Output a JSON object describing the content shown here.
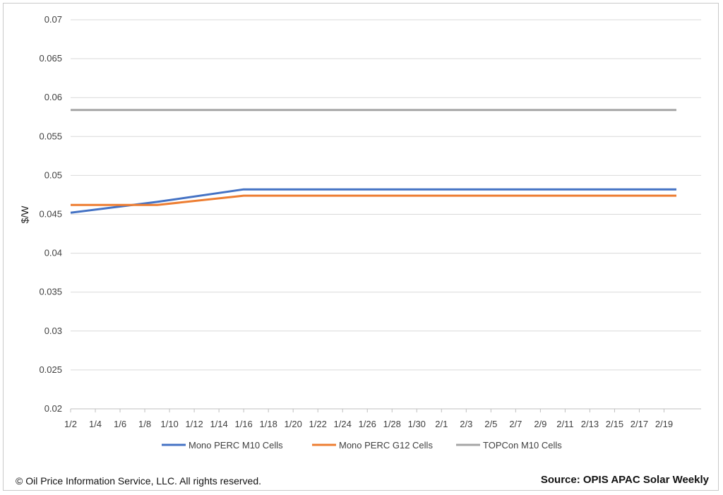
{
  "chart_data": {
    "type": "line",
    "ylabel": "$/W",
    "ylim": [
      0.02,
      0.07
    ],
    "yticks": [
      "0.02",
      "0.025",
      "0.03",
      "0.035",
      "0.04",
      "0.045",
      "0.05",
      "0.055",
      "0.06",
      "0.065",
      "0.07"
    ],
    "x_tick_labels": [
      "1/2",
      "1/4",
      "1/6",
      "1/8",
      "1/10",
      "1/12",
      "1/14",
      "1/16",
      "1/18",
      "1/20",
      "1/22",
      "1/24",
      "1/26",
      "1/28",
      "1/30",
      "2/1",
      "2/3",
      "2/5",
      "2/7",
      "2/9",
      "2/11",
      "2/13",
      "2/15",
      "2/17",
      "2/19"
    ],
    "x": [
      "1/2",
      "1/9",
      "1/16",
      "1/23",
      "1/30",
      "2/6",
      "2/13",
      "2/20"
    ],
    "grid": "horizontal",
    "legend_position": "bottom",
    "series": [
      {
        "name": "Mono PERC M10 Cells",
        "color": "#4472c4",
        "values": [
          0.0452,
          0.0466,
          0.0482,
          0.0482,
          0.0482,
          0.0482,
          0.0482,
          0.0482
        ]
      },
      {
        "name": "Mono PERC G12 Cells",
        "color": "#ed7d31",
        "values": [
          0.0462,
          0.0462,
          0.0474,
          0.0474,
          0.0474,
          0.0474,
          0.0474,
          0.0474
        ]
      },
      {
        "name": "TOPCon M10 Cells",
        "color": "#a5a5a5",
        "values": [
          0.0584,
          0.0584,
          0.0584,
          0.0584,
          0.0584,
          0.0584,
          0.0584,
          0.0584
        ]
      }
    ]
  },
  "footer": {
    "copyright": "© Oil Price Information Service, LLC.  All rights reserved.",
    "source": "Source: OPIS APAC Solar Weekly"
  }
}
